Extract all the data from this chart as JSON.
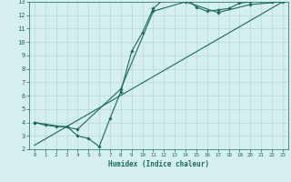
{
  "title": "",
  "xlabel": "Humidex (Indice chaleur)",
  "bg_color": "#d4efed",
  "line_color": "#1a6b5a",
  "grid_color": "#b8d8d4",
  "xlim": [
    -0.5,
    23.5
  ],
  "ylim": [
    2,
    13
  ],
  "x_ticks": [
    0,
    1,
    2,
    3,
    4,
    5,
    6,
    7,
    8,
    9,
    10,
    11,
    12,
    13,
    14,
    15,
    16,
    17,
    18,
    19,
    20,
    21,
    22,
    23
  ],
  "y_ticks": [
    2,
    3,
    4,
    5,
    6,
    7,
    8,
    9,
    10,
    11,
    12,
    13
  ],
  "line1_x": [
    0,
    1,
    2,
    3,
    4,
    5,
    6,
    7,
    8,
    9,
    10,
    11,
    12,
    13,
    14,
    15,
    16,
    17,
    18,
    19,
    20,
    21,
    22,
    23
  ],
  "line1_y": [
    4.0,
    3.8,
    3.7,
    3.7,
    3.0,
    2.8,
    2.2,
    4.3,
    6.3,
    9.3,
    10.7,
    12.5,
    13.2,
    13.2,
    13.3,
    12.6,
    12.3,
    12.4,
    12.5,
    12.9,
    13.0,
    13.1,
    13.0,
    13.1
  ],
  "line2_x": [
    0,
    4,
    8,
    11,
    14,
    17,
    20,
    23
  ],
  "line2_y": [
    4.0,
    3.5,
    6.5,
    12.3,
    13.0,
    12.2,
    12.8,
    13.0
  ],
  "line3_x": [
    0,
    23
  ],
  "line3_y": [
    2.3,
    13.0
  ],
  "marker_size": 1.8,
  "line_width": 0.8
}
